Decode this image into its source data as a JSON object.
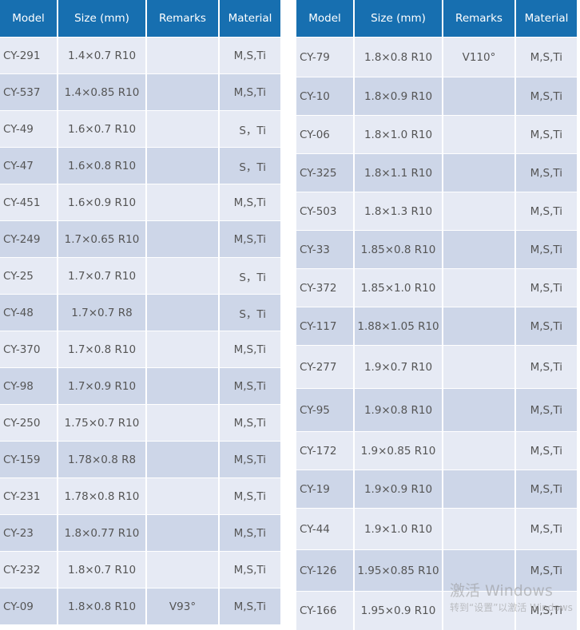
{
  "headers": [
    "Model",
    "Size (mm)",
    "Remarks",
    "Material"
  ],
  "left": [
    [
      "CY-291",
      "1.4×0.7 R10",
      "",
      "M,S,Ti"
    ],
    [
      "CY-537",
      "1.4×0.85 R10",
      "",
      "M,S,Ti"
    ],
    [
      "CY-49",
      "1.6×0.7 R10",
      "",
      "S，Ti"
    ],
    [
      "CY-47",
      "1.6×0.8 R10",
      "",
      "S，Ti"
    ],
    [
      "CY-451",
      "1.6×0.9 R10",
      "",
      "M,S,Ti"
    ],
    [
      "CY-249",
      "1.7×0.65 R10",
      "",
      "M,S,Ti"
    ],
    [
      "CY-25",
      "1.7×0.7 R10",
      "",
      "S，Ti"
    ],
    [
      "CY-48",
      "1.7×0.7 R8",
      "",
      "S，Ti"
    ],
    [
      "CY-370",
      "1.7×0.8 R10",
      "",
      "M,S,Ti"
    ],
    [
      "CY-98",
      "1.7×0.9 R10",
      "",
      "M,S,Ti"
    ],
    [
      "CY-250",
      "1.75×0.7 R10",
      "",
      "M,S,Ti"
    ],
    [
      "CY-159",
      "1.78×0.8 R8",
      "",
      "M,S,Ti"
    ],
    [
      "CY-231",
      "1.78×0.8 R10",
      "",
      "M,S,Ti"
    ],
    [
      "CY-23",
      "1.8×0.77 R10",
      "",
      "M,S,Ti"
    ],
    [
      "CY-232",
      "1.8×0.7 R10",
      "",
      "M,S,Ti"
    ],
    [
      "CY-09",
      "1.8×0.8 R10",
      "V93°",
      "M,S,Ti"
    ]
  ],
  "right": [
    [
      "CY-79",
      "1.8×0.8 R10",
      "V110°",
      "M,S,Ti"
    ],
    [
      "CY-10",
      "1.8×0.9 R10",
      "",
      "M,S,Ti"
    ],
    [
      "CY-06",
      "1.8×1.0 R10",
      "",
      "M,S,Ti"
    ],
    [
      "CY-325",
      "1.8×1.1 R10",
      "",
      "M,S,Ti"
    ],
    [
      "CY-503",
      "1.8×1.3 R10",
      "",
      "M,S,Ti"
    ],
    [
      "CY-33",
      "1.85×0.8 R10",
      "",
      "M,S,Ti"
    ],
    [
      "CY-372",
      "1.85×1.0 R10",
      "",
      "M,S,Ti"
    ],
    [
      "CY-117",
      "1.88×1.05 R10",
      "",
      "M,S,Ti"
    ],
    [
      "CY-277",
      "1.9×0.7 R10",
      "",
      "M,S,Ti"
    ],
    [
      "CY-95",
      "1.9×0.8 R10",
      "",
      "M,S,Ti"
    ],
    [
      "CY-172",
      "1.9×0.85 R10",
      "",
      "M,S,Ti"
    ],
    [
      "CY-19",
      "1.9×0.9 R10",
      "",
      "M,S,Ti"
    ],
    [
      "CY-44",
      "1.9×1.0 R10",
      "",
      "M,S,Ti"
    ],
    [
      "CY-126",
      "1.95×0.85 R10",
      "",
      "M,S,Ti"
    ],
    [
      "CY-166",
      "1.95×0.9 R10",
      "",
      "M,S,Ti"
    ]
  ],
  "watermark": {
    "line1": "激活 Windows",
    "line2": "转到“设置”以激活 Windows"
  }
}
